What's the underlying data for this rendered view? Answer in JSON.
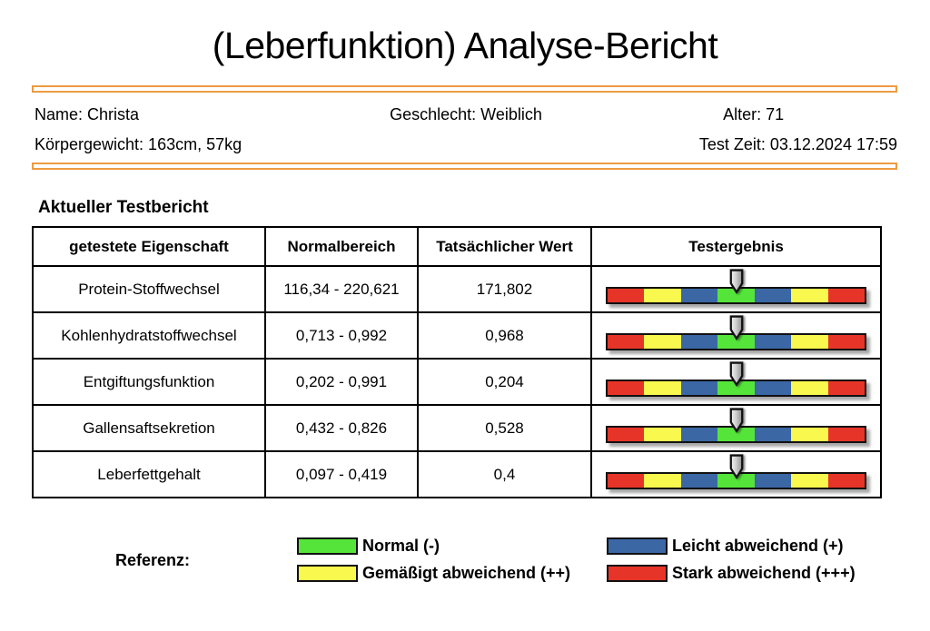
{
  "report": {
    "title": "(Leberfunktion) Analyse-Bericht"
  },
  "patient_info": {
    "name": "Name: Christa",
    "gender": "Geschlecht: Weiblich",
    "age": "Alter: 71",
    "body_metrics": "Körpergewicht: 163cm, 57kg",
    "test_time": "Test Zeit: 03.12.2024 17:59"
  },
  "section_title": "Aktueller Testbericht",
  "table": {
    "headers": {
      "property": "getestete Eigenschaft",
      "normal_range": "Normalbereich",
      "actual_value": "Tatsächlicher Wert",
      "result": "Testergebnis"
    },
    "rows": [
      {
        "property": "Protein-Stoffwechsel",
        "normal_range": "116,34 - 220,621",
        "actual_value": "171,802",
        "result": "Normal",
        "arrow_position": 0.5
      },
      {
        "property": "Kohlenhydratstoffwechsel",
        "normal_range": "0,713 - 0,992",
        "actual_value": "0,968",
        "result": "Normal",
        "arrow_position": 0.5
      },
      {
        "property": "Entgiftungsfunktion",
        "normal_range": "0,202 - 0,991",
        "actual_value": "0,204",
        "result": "Normal",
        "arrow_position": 0.5
      },
      {
        "property": "Gallensaftsekretion",
        "normal_range": "0,432 - 0,826",
        "actual_value": "0,528",
        "result": "Normal",
        "arrow_position": 0.5
      },
      {
        "property": "Leberfettgehalt",
        "normal_range": "0,097 - 0,419",
        "actual_value": "0,4",
        "result": "Normal",
        "arrow_position": 0.5
      }
    ]
  },
  "result_bar": {
    "segment_colors": [
      "#e73428",
      "#f9f84e",
      "#3b67a5",
      "#55e43a",
      "#3b67a5",
      "#f9f84e",
      "#e73428"
    ],
    "arrow_icon": "down-arrow-marker"
  },
  "legend": {
    "label": "Referenz:",
    "items": [
      {
        "label": "Normal (-)",
        "color": "#55e43a"
      },
      {
        "label": "Leicht abweichend (+)",
        "color": "#3b67a5"
      },
      {
        "label": "Gemäßigt abweichend (++)",
        "color": "#f9f84e"
      },
      {
        "label": "Stark abweichend (+++)",
        "color": "#e73428"
      }
    ]
  },
  "colors": {
    "divider_orange": "#ed9b40",
    "table_border": "#000000",
    "background": "#ffffff"
  }
}
